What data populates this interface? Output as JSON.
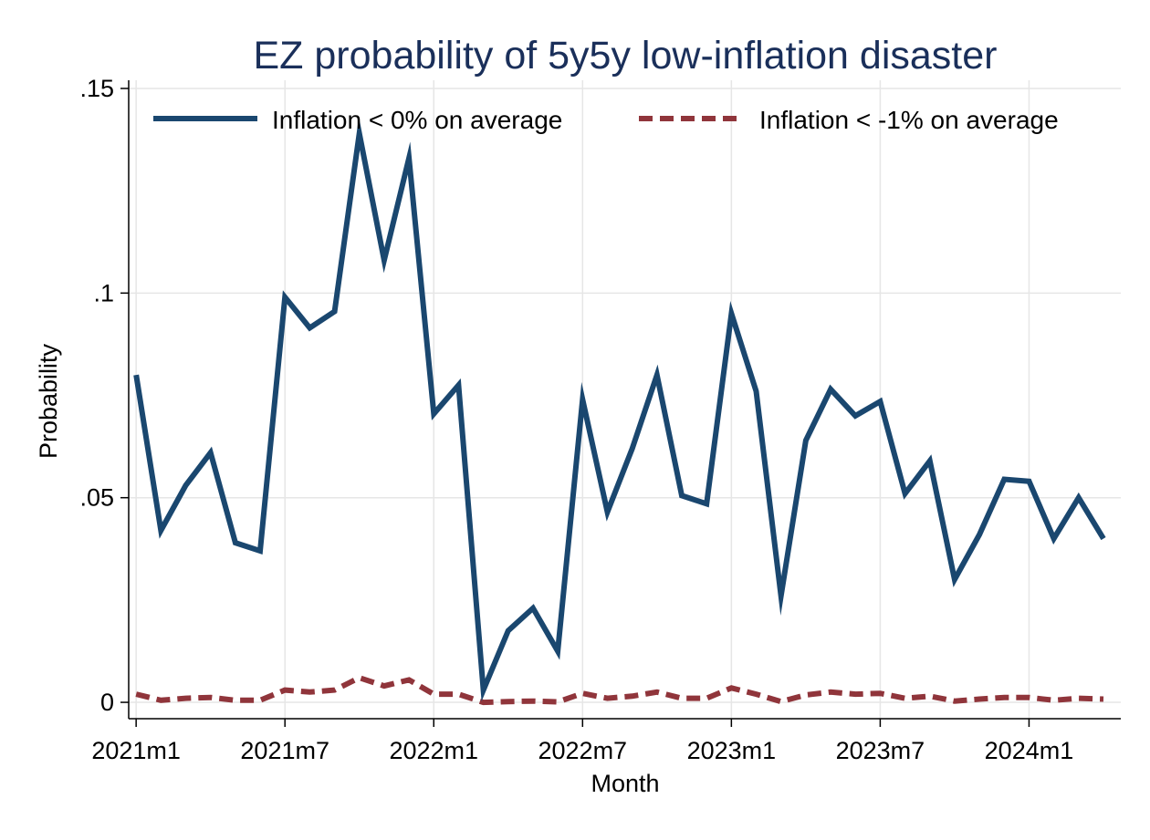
{
  "chart_data": {
    "type": "line",
    "title": "EZ probability of 5y5y low-inflation disaster",
    "xlabel": "Month",
    "ylabel": "Probability",
    "ylim": [
      -0.004,
      0.152
    ],
    "y_ticks": [
      0,
      0.05,
      0.1,
      0.15
    ],
    "y_tick_labels": [
      "0",
      ".05",
      ".1",
      ".15"
    ],
    "x_ticks": [
      0,
      6,
      12,
      18,
      24,
      30,
      36
    ],
    "x_tick_labels": [
      "2021m1",
      "2021m7",
      "2022m1",
      "2022m7",
      "2023m1",
      "2023m7",
      "2024m1"
    ],
    "xlim": [
      -0.3,
      39.7
    ],
    "grid": true,
    "legend_position": "top",
    "x": [
      "2021m1",
      "2021m2",
      "2021m3",
      "2021m4",
      "2021m5",
      "2021m6",
      "2021m7",
      "2021m8",
      "2021m9",
      "2021m10",
      "2021m11",
      "2021m12",
      "2022m1",
      "2022m2",
      "2022m3",
      "2022m4",
      "2022m5",
      "2022m6",
      "2022m7",
      "2022m8",
      "2022m9",
      "2022m10",
      "2022m11",
      "2022m12",
      "2023m1",
      "2023m2",
      "2023m3",
      "2023m4",
      "2023m5",
      "2023m6",
      "2023m7",
      "2023m8",
      "2023m9",
      "2023m10",
      "2023m11",
      "2023m12",
      "2024m1",
      "2024m2",
      "2024m3",
      "2024m4"
    ],
    "series": [
      {
        "name": "Inflation < 0% on average",
        "color": "#1a476f",
        "style": "solid",
        "values": [
          0.08,
          0.042,
          0.053,
          0.061,
          0.039,
          0.037,
          0.099,
          0.0915,
          0.0955,
          0.139,
          0.108,
          0.133,
          0.0705,
          0.0775,
          0.003,
          0.0175,
          0.023,
          0.0125,
          0.074,
          0.0465,
          0.062,
          0.08,
          0.0505,
          0.0485,
          0.095,
          0.076,
          0.026,
          0.064,
          0.0765,
          0.07,
          0.0735,
          0.051,
          0.059,
          0.03,
          0.041,
          0.0545,
          0.054,
          0.04,
          0.05,
          0.04
        ]
      },
      {
        "name": "Inflation < -1% on average",
        "color": "#90353b",
        "style": "dashed",
        "values": [
          0.002,
          0.0005,
          0.001,
          0.0012,
          0.0005,
          0.0005,
          0.003,
          0.0025,
          0.003,
          0.006,
          0.004,
          0.0055,
          0.002,
          0.002,
          0.0,
          0.0002,
          0.0003,
          0.0001,
          0.0022,
          0.001,
          0.0015,
          0.0025,
          0.001,
          0.001,
          0.0035,
          0.002,
          0.0002,
          0.0018,
          0.0025,
          0.002,
          0.0022,
          0.001,
          0.0015,
          0.0003,
          0.0008,
          0.0012,
          0.0012,
          0.0005,
          0.001,
          0.0008
        ]
      }
    ]
  }
}
